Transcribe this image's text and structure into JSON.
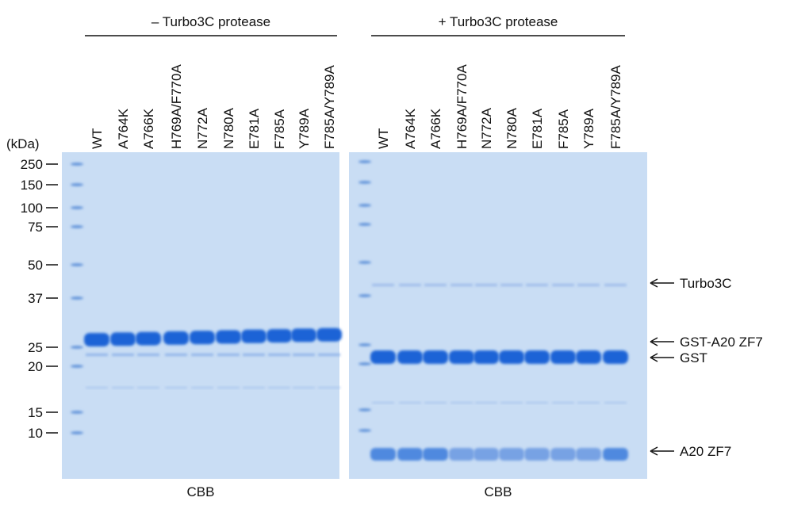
{
  "panels": [
    {
      "header": "– Turbo3C protease",
      "caption": "CBB",
      "lanes": [
        "WT",
        "A764K",
        "A766K",
        "H769A/F770A",
        "N772A",
        "N780A",
        "E781A",
        "F785A",
        "Y789A",
        "F785A/Y789A"
      ]
    },
    {
      "header": "+ Turbo3C protease",
      "caption": "CBB",
      "lanes": [
        "WT",
        "A764K",
        "A766K",
        "H769A/F770A",
        "N772A",
        "N780A",
        "E781A",
        "F785A",
        "Y789A",
        "F785A/Y789A"
      ]
    }
  ],
  "markers": {
    "unit": "(kDa)",
    "labels": [
      "250",
      "150",
      "100",
      "75",
      "50",
      "37",
      "25",
      "20",
      "15",
      "10"
    ]
  },
  "annotations": [
    "Turbo3C",
    "GST-A20 ZF7",
    "GST",
    "A20 ZF7"
  ]
}
